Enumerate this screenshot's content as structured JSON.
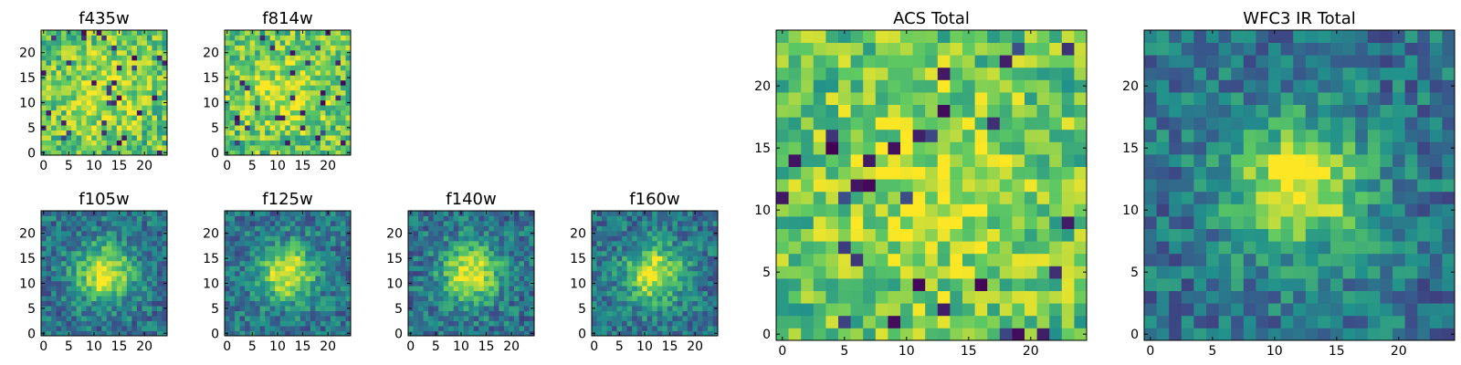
{
  "chart_data": [
    {
      "type": "heatmap",
      "title": "f435w",
      "xlim": [
        0,
        24
      ],
      "ylim": [
        0,
        24
      ],
      "xticks": [
        0,
        5,
        10,
        15,
        20
      ],
      "yticks": [
        0,
        5,
        10,
        15,
        20
      ],
      "colormap": "viridis",
      "texture": "bright-noisy"
    },
    {
      "type": "heatmap",
      "title": "f814w",
      "xlim": [
        0,
        24
      ],
      "ylim": [
        0,
        24
      ],
      "xticks": [
        0,
        5,
        10,
        15,
        20
      ],
      "yticks": [
        0,
        5,
        10,
        15,
        20
      ],
      "colormap": "viridis",
      "texture": "bright-noisy"
    },
    {
      "type": "heatmap",
      "title": "ACS Total",
      "xlim": [
        0,
        24
      ],
      "ylim": [
        0,
        24
      ],
      "xticks": [
        0,
        5,
        10,
        15,
        20
      ],
      "yticks": [
        0,
        5,
        10,
        15,
        20
      ],
      "colormap": "viridis",
      "texture": "bright-noisy"
    },
    {
      "type": "heatmap",
      "title": "WFC3 IR Total",
      "xlim": [
        0,
        24
      ],
      "ylim": [
        0,
        24
      ],
      "xticks": [
        0,
        5,
        10,
        15,
        20
      ],
      "yticks": [
        0,
        5,
        10,
        15,
        20
      ],
      "colormap": "viridis",
      "texture": "smooth-peak"
    },
    {
      "type": "heatmap",
      "title": "f105w",
      "xlim": [
        0,
        24
      ],
      "ylim": [
        0,
        24
      ],
      "xticks": [
        0,
        5,
        10,
        15,
        20
      ],
      "yticks": [
        0,
        5,
        10,
        15,
        20
      ],
      "colormap": "viridis",
      "texture": "smooth-peak"
    },
    {
      "type": "heatmap",
      "title": "f125w",
      "xlim": [
        0,
        24
      ],
      "ylim": [
        0,
        24
      ],
      "xticks": [
        0,
        5,
        10,
        15,
        20
      ],
      "yticks": [
        0,
        5,
        10,
        15,
        20
      ],
      "colormap": "viridis",
      "texture": "smooth-peak"
    },
    {
      "type": "heatmap",
      "title": "f140w",
      "xlim": [
        0,
        24
      ],
      "ylim": [
        0,
        24
      ],
      "xticks": [
        0,
        5,
        10,
        15,
        20
      ],
      "yticks": [
        0,
        5,
        10,
        15,
        20
      ],
      "colormap": "viridis",
      "texture": "smooth-peak"
    },
    {
      "type": "heatmap",
      "title": "f160w",
      "xlim": [
        0,
        24
      ],
      "ylim": [
        0,
        24
      ],
      "xticks": [
        0,
        5,
        10,
        15,
        20
      ],
      "yticks": [
        0,
        5,
        10,
        15,
        20
      ],
      "colormap": "viridis",
      "texture": "smooth-peak"
    }
  ]
}
